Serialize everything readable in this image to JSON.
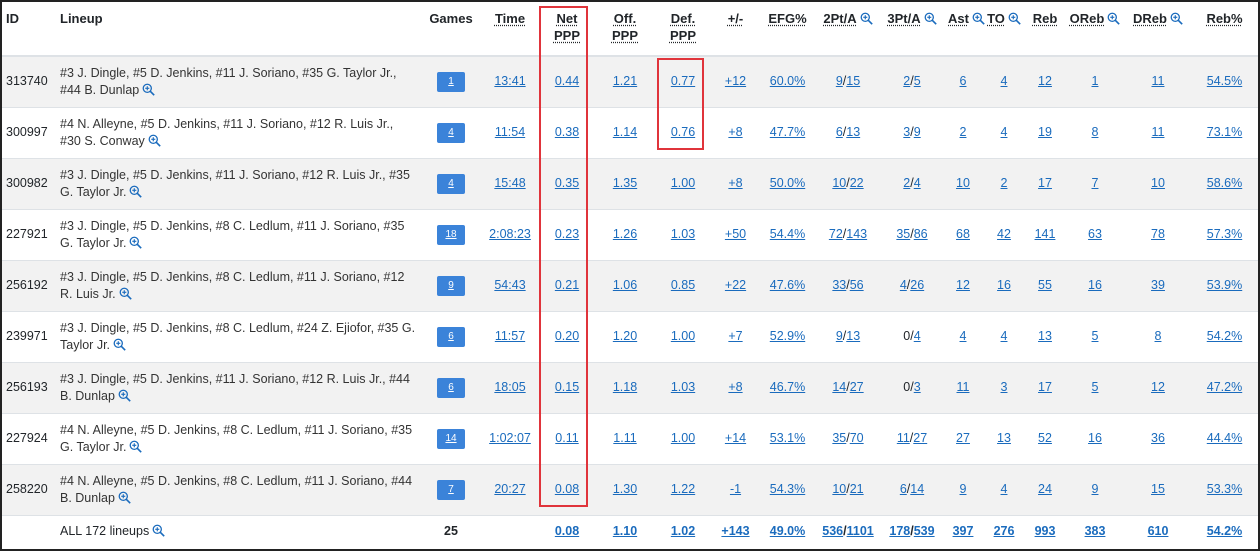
{
  "headers": {
    "id": "ID",
    "lineup": "Lineup",
    "games": "Games",
    "time": "Time",
    "net_ppp": [
      "Net",
      "PPP"
    ],
    "off_ppp": [
      "Off.",
      "PPP"
    ],
    "def_ppp": [
      "Def.",
      "PPP"
    ],
    "plus_minus": "+/-",
    "efg": "EFG%",
    "twopt": "2Pt/A",
    "threept": "3Pt/A",
    "ast": "Ast",
    "to": "TO",
    "reb": "Reb",
    "oreb": "OReb",
    "dreb": "DReb",
    "rebpct": "Reb%"
  },
  "rows": [
    {
      "id": "313740",
      "lineup": "#3 J. Dingle, #5 D. Jenkins, #11 J. Soriano, #35 G. Taylor Jr., #44 B. Dunlap",
      "games": "1",
      "time": "13:41",
      "net": "0.44",
      "off": "1.21",
      "def": "0.77",
      "pm": "+12",
      "efg": "60.0%",
      "t2m": "9",
      "t2a": "15",
      "t3m": "2",
      "t3a": "5",
      "ast": "6",
      "to": "4",
      "reb": "12",
      "oreb": "1",
      "dreb": "11",
      "rebpct": "54.5%"
    },
    {
      "id": "300997",
      "lineup": "#4 N. Alleyne, #5 D. Jenkins, #11 J. Soriano, #12 R. Luis Jr., #30 S. Conway",
      "games": "4",
      "time": "11:54",
      "net": "0.38",
      "off": "1.14",
      "def": "0.76",
      "pm": "+8",
      "efg": "47.7%",
      "t2m": "6",
      "t2a": "13",
      "t3m": "3",
      "t3a": "9",
      "ast": "2",
      "to": "4",
      "reb": "19",
      "oreb": "8",
      "dreb": "11",
      "rebpct": "73.1%"
    },
    {
      "id": "300982",
      "lineup": "#3 J. Dingle, #5 D. Jenkins, #11 J. Soriano, #12 R. Luis Jr., #35 G. Taylor Jr.",
      "games": "4",
      "time": "15:48",
      "net": "0.35",
      "off": "1.35",
      "def": "1.00",
      "pm": "+8",
      "efg": "50.0%",
      "t2m": "10",
      "t2a": "22",
      "t3m": "2",
      "t3a": "4",
      "ast": "10",
      "to": "2",
      "reb": "17",
      "oreb": "7",
      "dreb": "10",
      "rebpct": "58.6%"
    },
    {
      "id": "227921",
      "lineup": "#3 J. Dingle, #5 D. Jenkins, #8 C. Ledlum, #11 J. Soriano, #35 G. Taylor Jr.",
      "games": "18",
      "time": "2:08:23",
      "net": "0.23",
      "off": "1.26",
      "def": "1.03",
      "pm": "+50",
      "efg": "54.4%",
      "t2m": "72",
      "t2a": "143",
      "t3m": "35",
      "t3a": "86",
      "ast": "68",
      "to": "42",
      "reb": "141",
      "oreb": "63",
      "dreb": "78",
      "rebpct": "57.3%"
    },
    {
      "id": "256192",
      "lineup": "#3 J. Dingle, #5 D. Jenkins, #8 C. Ledlum, #11 J. Soriano, #12 R. Luis Jr.",
      "games": "9",
      "time": "54:43",
      "net": "0.21",
      "off": "1.06",
      "def": "0.85",
      "pm": "+22",
      "efg": "47.6%",
      "t2m": "33",
      "t2a": "56",
      "t3m": "4",
      "t3a": "26",
      "ast": "12",
      "to": "16",
      "reb": "55",
      "oreb": "16",
      "dreb": "39",
      "rebpct": "53.9%"
    },
    {
      "id": "239971",
      "lineup": "#3 J. Dingle, #5 D. Jenkins, #8 C. Ledlum, #24 Z. Ejiofor, #35 G. Taylor Jr.",
      "games": "6",
      "time": "11:57",
      "net": "0.20",
      "off": "1.20",
      "def": "1.00",
      "pm": "+7",
      "efg": "52.9%",
      "t2m": "9",
      "t2a": "13",
      "t3m": "0",
      "t3a": "4",
      "ast": "4",
      "to": "4",
      "reb": "13",
      "oreb": "5",
      "dreb": "8",
      "rebpct": "54.2%"
    },
    {
      "id": "256193",
      "lineup": "#3 J. Dingle, #5 D. Jenkins, #11 J. Soriano, #12 R. Luis Jr., #44 B. Dunlap",
      "games": "6",
      "time": "18:05",
      "net": "0.15",
      "off": "1.18",
      "def": "1.03",
      "pm": "+8",
      "efg": "46.7%",
      "t2m": "14",
      "t2a": "27",
      "t3m": "0",
      "t3a": "3",
      "ast": "11",
      "to": "3",
      "reb": "17",
      "oreb": "5",
      "dreb": "12",
      "rebpct": "47.2%"
    },
    {
      "id": "227924",
      "lineup": "#4 N. Alleyne, #5 D. Jenkins, #8 C. Ledlum, #11 J. Soriano, #35 G. Taylor Jr.",
      "games": "14",
      "time": "1:02:07",
      "net": "0.11",
      "off": "1.11",
      "def": "1.00",
      "pm": "+14",
      "efg": "53.1%",
      "t2m": "35",
      "t2a": "70",
      "t3m": "11",
      "t3a": "27",
      "ast": "27",
      "to": "13",
      "reb": "52",
      "oreb": "16",
      "dreb": "36",
      "rebpct": "44.4%"
    },
    {
      "id": "258220",
      "lineup": "#4 N. Alleyne, #5 D. Jenkins, #8 C. Ledlum, #11 J. Soriano, #44 B. Dunlap",
      "games": "7",
      "time": "20:27",
      "net": "0.08",
      "off": "1.30",
      "def": "1.22",
      "pm": "-1",
      "efg": "54.3%",
      "t2m": "10",
      "t2a": "21",
      "t3m": "6",
      "t3a": "14",
      "ast": "9",
      "to": "4",
      "reb": "24",
      "oreb": "9",
      "dreb": "15",
      "rebpct": "53.3%"
    }
  ],
  "footer": {
    "label": "ALL 172 lineups",
    "games": "25",
    "net": "0.08",
    "off": "1.10",
    "def": "1.02",
    "pm": "+143",
    "efg": "49.0%",
    "t2m": "536",
    "t2a": "1101",
    "t3m": "178",
    "t3a": "539",
    "ast": "397",
    "to": "276",
    "reb": "993",
    "oreb": "383",
    "dreb": "610",
    "rebpct": "54.2%"
  },
  "colors": {
    "link": "#1a6bbd",
    "badge": "#3b83d9",
    "highlight": "#e0343b",
    "stripe": "#f2f2f2"
  },
  "icons": {
    "zoom": "zoom-in-icon"
  }
}
